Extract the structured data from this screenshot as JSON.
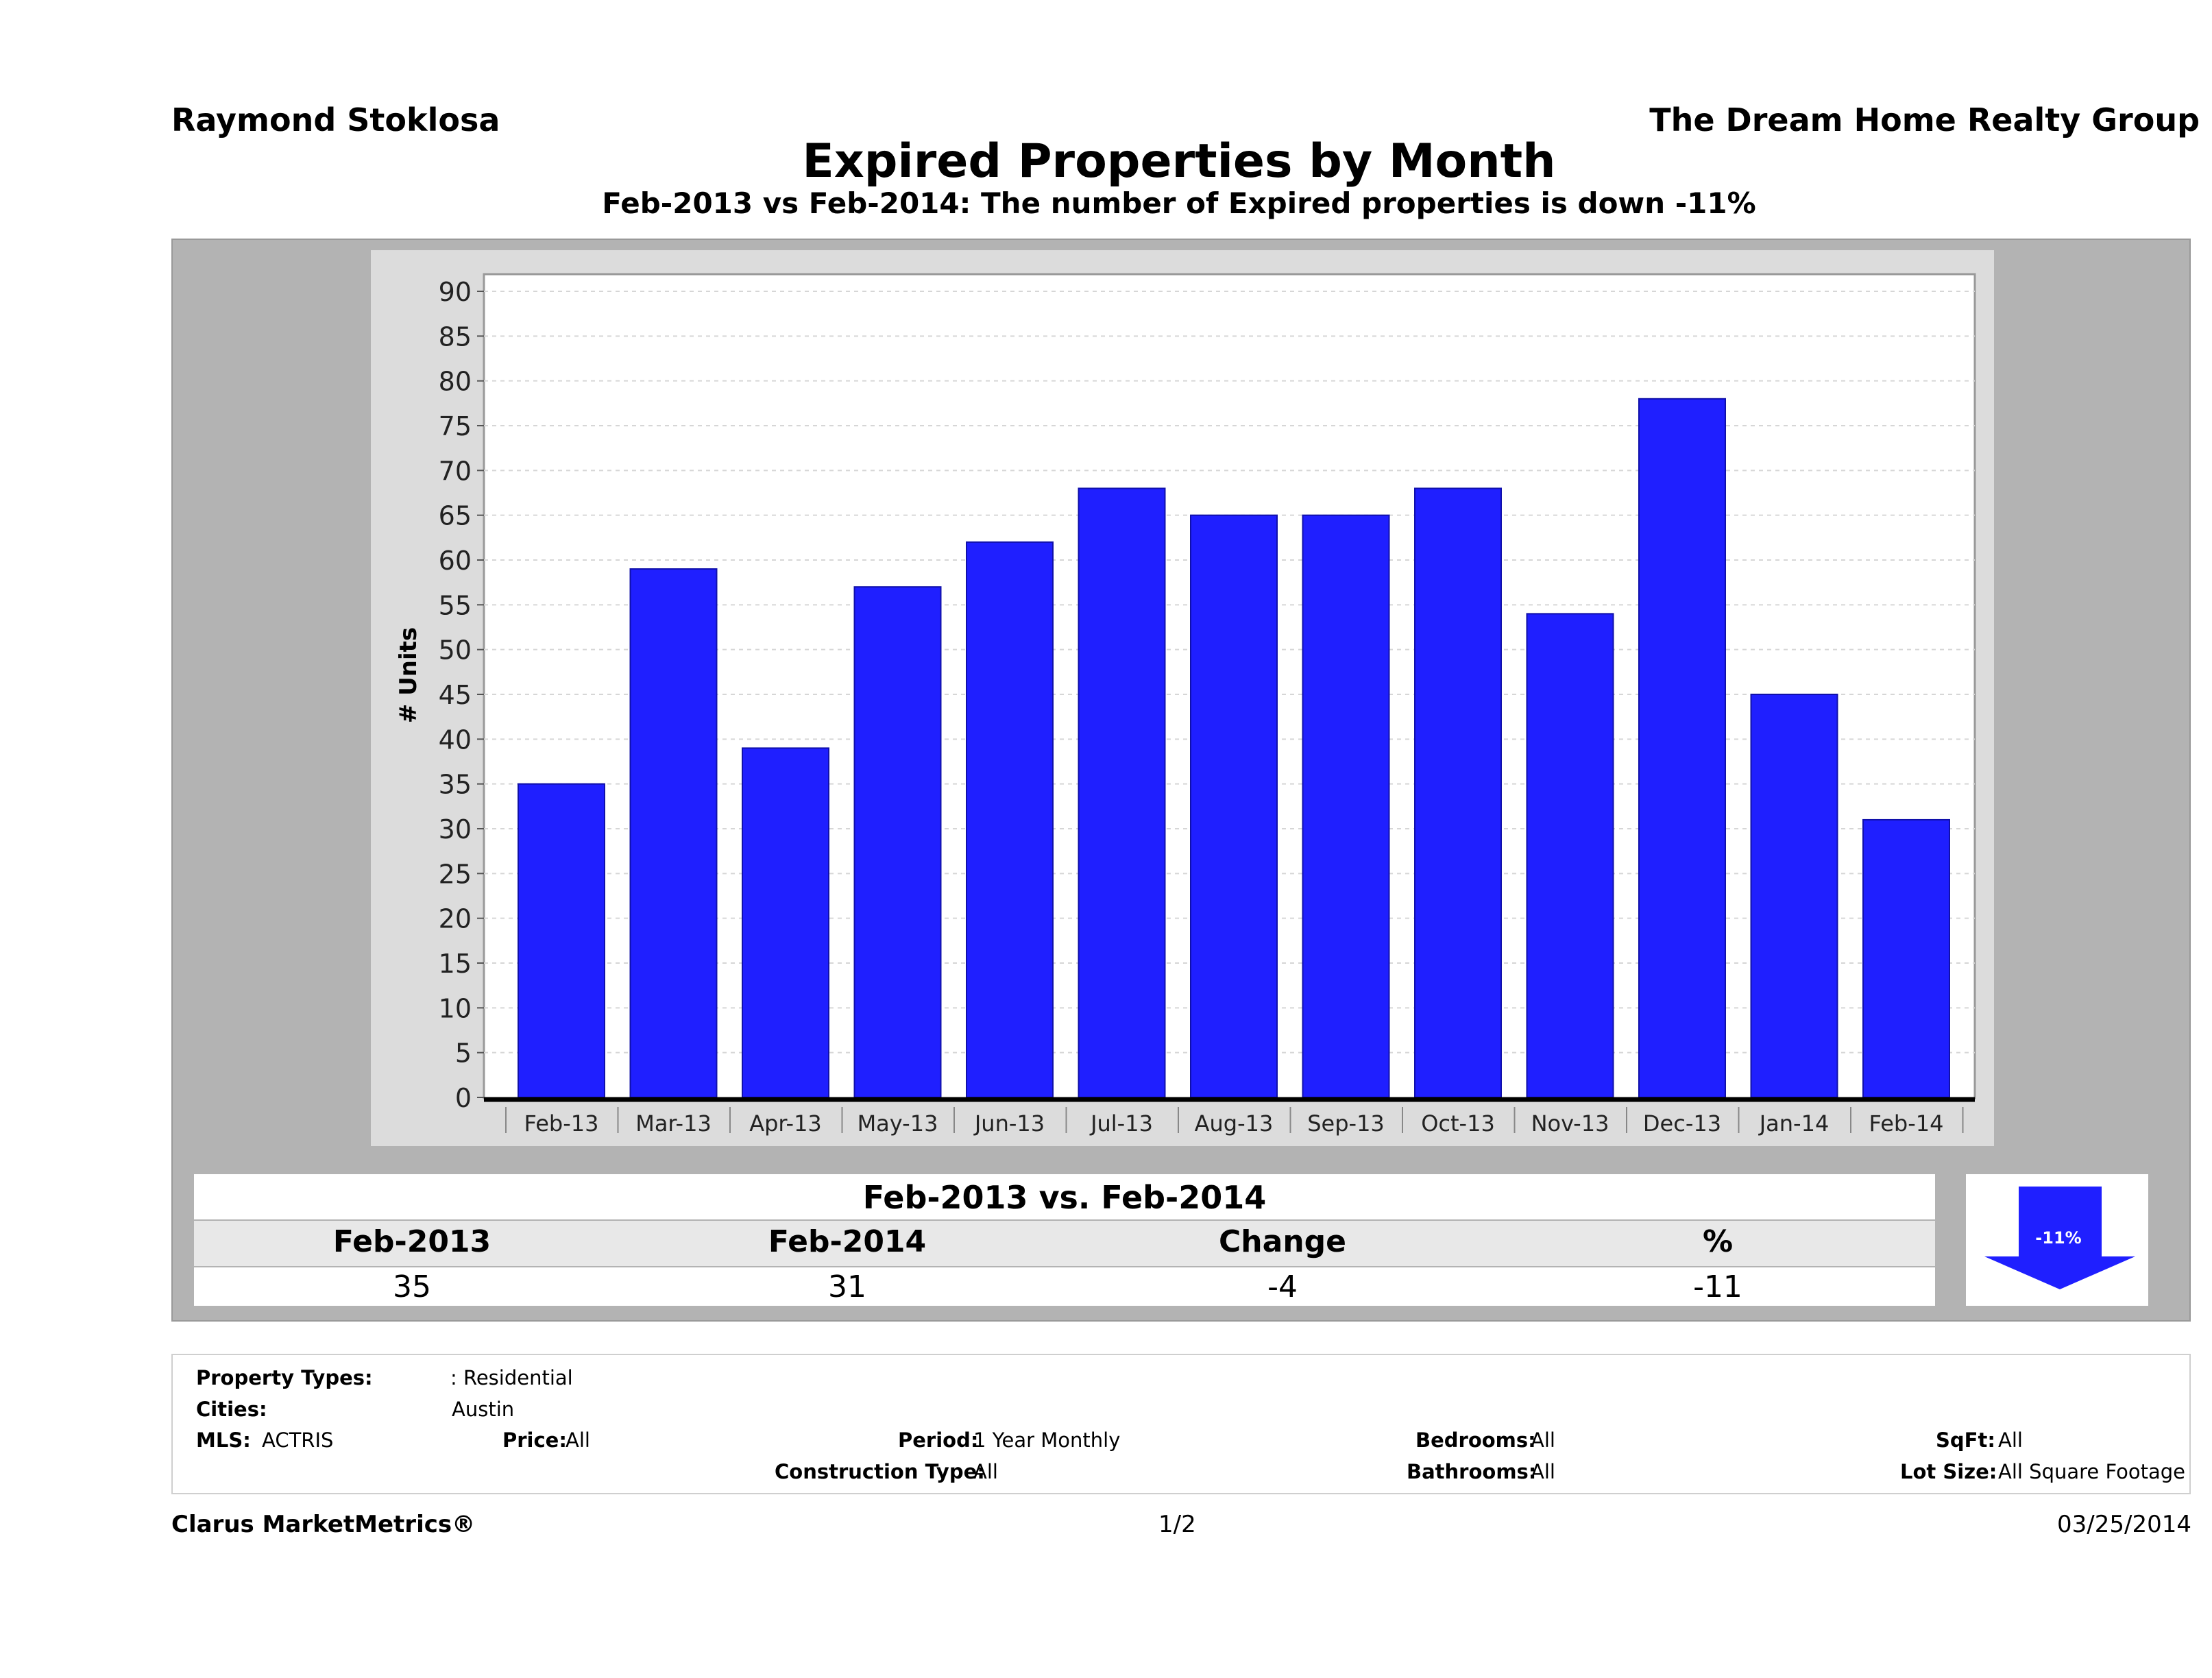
{
  "header": {
    "agent_name": "Raymond Stoklosa",
    "company": "The Dream Home Realty Group",
    "title": "Expired Properties by Month",
    "subtitle": "Feb-2013 vs Feb-2014: The number of Expired  properties is down -11%"
  },
  "chart_data": {
    "type": "bar",
    "title": "Expired Properties by Month",
    "xlabel": "",
    "ylabel": "# Units",
    "ylim": [
      0,
      90
    ],
    "ytick_step": 5,
    "grid": true,
    "categories": [
      "Feb-13",
      "Mar-13",
      "Apr-13",
      "May-13",
      "Jun-13",
      "Jul-13",
      "Aug-13",
      "Sep-13",
      "Oct-13",
      "Nov-13",
      "Dec-13",
      "Jan-14",
      "Feb-14"
    ],
    "values": [
      35,
      59,
      39,
      57,
      62,
      68,
      65,
      65,
      68,
      54,
      78,
      45,
      31
    ],
    "bar_color": "#1f1fff"
  },
  "summary": {
    "title": "Feb-2013 vs. Feb-2014",
    "headers": [
      "Feb-2013",
      "Feb-2014",
      "Change",
      "%"
    ],
    "values": [
      "35",
      "31",
      "-4",
      "-11"
    ],
    "arrow_label": "-11%",
    "arrow_color": "#1f1fff"
  },
  "filters": {
    "property_types_label": "Property Types:",
    "property_types_value": ": Residential",
    "cities_label": "Cities:",
    "cities_value": "Austin",
    "mls_label": "MLS:",
    "mls_value": "ACTRIS",
    "price_label": "Price:",
    "price_value": "All",
    "period_label": "Period:",
    "period_value": "1 Year Monthly",
    "construction_label": "Construction Type:",
    "construction_value": "All",
    "bedrooms_label": "Bedrooms:",
    "bedrooms_value": "All",
    "bathrooms_label": "Bathrooms:",
    "bathrooms_value": "All",
    "sqft_label": "SqFt:",
    "sqft_value": "All",
    "lot_label": "Lot Size:",
    "lot_value": "All Square Footage"
  },
  "footer": {
    "brand": "Clarus MarketMetrics®",
    "page": "1/2",
    "date": "03/25/2014"
  }
}
